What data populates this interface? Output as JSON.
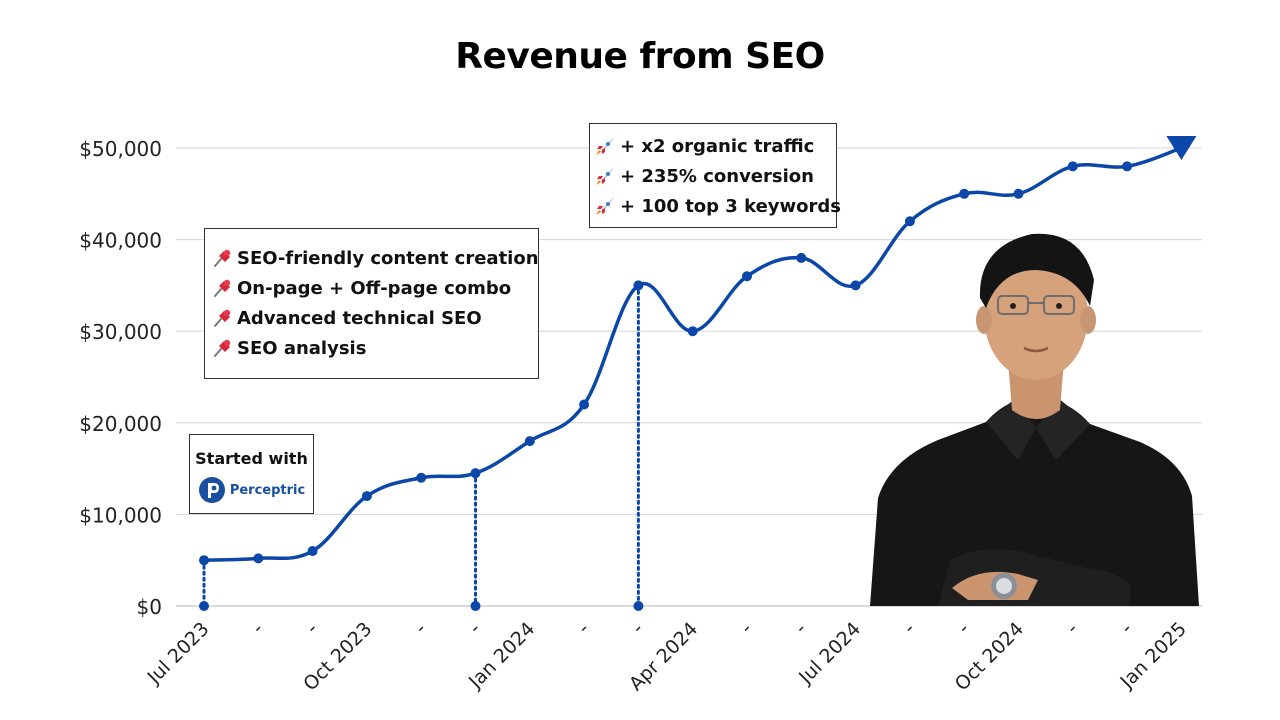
{
  "chart_data": {
    "type": "line",
    "title": "Revenue from SEO",
    "xlabel": "",
    "ylabel": "",
    "ylim": [
      0,
      50000
    ],
    "y_ticks": [
      {
        "value": 0,
        "label": "$0"
      },
      {
        "value": 10000,
        "label": "$10,000"
      },
      {
        "value": 20000,
        "label": "$20,000"
      },
      {
        "value": 30000,
        "label": "$30,000"
      },
      {
        "value": 40000,
        "label": "$40,000"
      },
      {
        "value": 50000,
        "label": "$50,000"
      }
    ],
    "categories": [
      "Jul 2023",
      "-",
      "-",
      "Oct 2023",
      "-",
      "-",
      "Jan 2024",
      "-",
      "-",
      "Apr 2024",
      "-",
      "-",
      "Jul 2024",
      "-",
      "-",
      "Oct 2024",
      "-",
      "-",
      "Jan 2025"
    ],
    "series": [
      {
        "color": "#0b47a8",
        "values": [
          5000,
          5200,
          6000,
          12000,
          14000,
          14500,
          18000,
          22000,
          35000,
          30000,
          36000,
          38000,
          35000,
          42000,
          45000,
          45000,
          48000,
          48000,
          50000
        ]
      }
    ],
    "milestone_indices": [
      0,
      5,
      8
    ],
    "grid": true,
    "line_color": "#0b47a8"
  },
  "annotations": {
    "services": {
      "icon": "pushpin-icon",
      "items": [
        "SEO-friendly content creation",
        "On-page + Off-page combo",
        "Advanced technical SEO",
        "SEO analysis"
      ]
    },
    "results": {
      "icon": "rocket-icon",
      "items": [
        "+ x2 organic traffic",
        "+ 235% conversion",
        "+ 100 top 3 keywords"
      ]
    },
    "start": {
      "label": "Started with",
      "brand": "Perceptric",
      "brand_color": "#1a4fa0"
    }
  }
}
